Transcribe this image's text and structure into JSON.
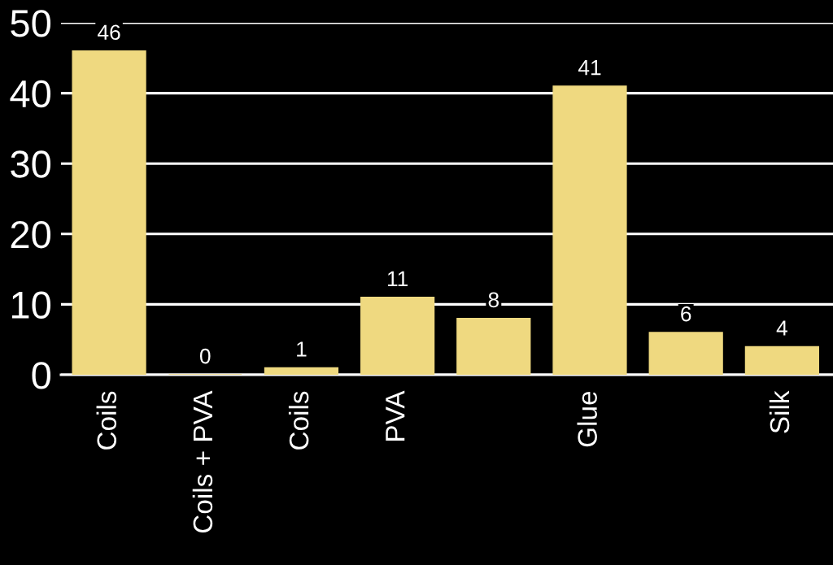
{
  "chart_data": {
    "type": "bar",
    "categories": [
      "Coils",
      "Coils + PVA",
      "Coils",
      "PVA",
      null,
      "Glue",
      null,
      "Silk"
    ],
    "values": [
      46,
      0,
      1,
      11,
      8,
      41,
      6,
      4
    ],
    "color": "#efd980",
    "ylim": [
      0,
      50
    ],
    "yticks": [
      0,
      10,
      20,
      30,
      40,
      50
    ],
    "grid": "y",
    "data_labels": true
  }
}
